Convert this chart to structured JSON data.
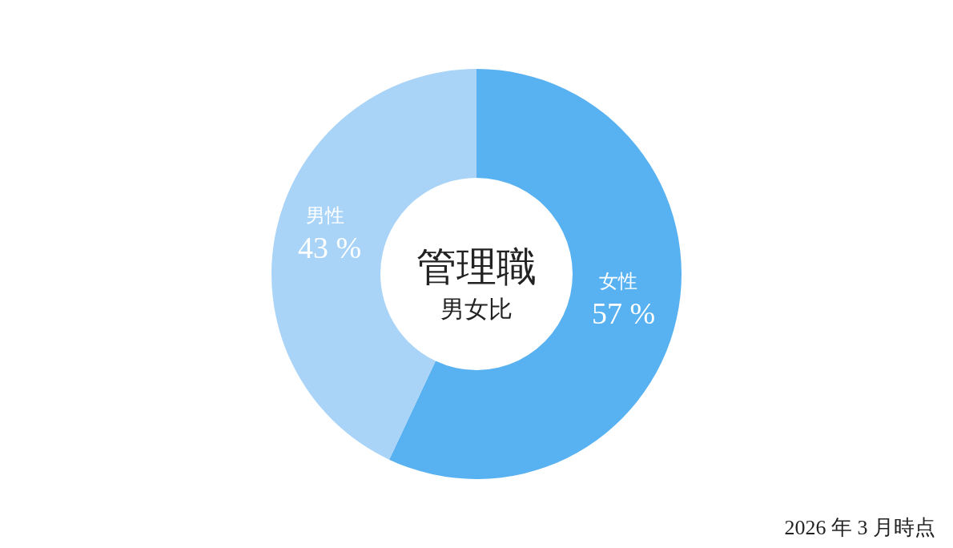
{
  "chart_data": {
    "type": "donut",
    "title": "管理職",
    "subtitle": "男女比",
    "categories": [
      "女性",
      "男性"
    ],
    "values": [
      57,
      43
    ],
    "colors": [
      "#58b1f1",
      "#a9d4f8"
    ],
    "value_labels": [
      "57 %",
      "43 %"
    ],
    "annotations": [
      "2026 年 3 月時点"
    ]
  }
}
